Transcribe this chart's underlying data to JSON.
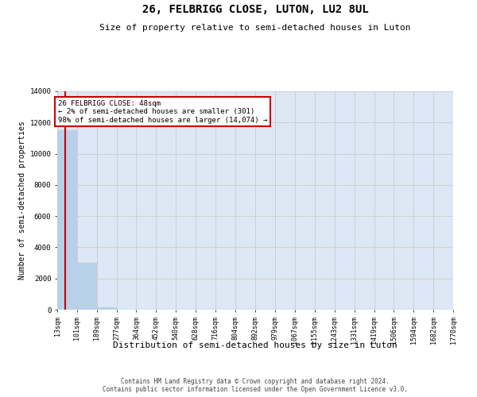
{
  "title": "26, FELBRIGG CLOSE, LUTON, LU2 8UL",
  "subtitle": "Size of property relative to semi-detached houses in Luton",
  "xlabel": "Distribution of semi-detached houses by size in Luton",
  "ylabel": "Number of semi-detached properties",
  "bar_values": [
    11500,
    3000,
    150,
    0,
    0,
    0,
    0,
    0,
    0,
    0,
    0,
    0,
    0,
    0,
    0,
    0,
    0,
    0,
    0,
    0
  ],
  "bin_edges": [
    13,
    101,
    189,
    277,
    364,
    452,
    540,
    628,
    716,
    804,
    892,
    979,
    1067,
    1155,
    1243,
    1331,
    1419,
    1506,
    1594,
    1682,
    1770
  ],
  "tick_labels": [
    "13sqm",
    "101sqm",
    "189sqm",
    "277sqm",
    "364sqm",
    "452sqm",
    "540sqm",
    "628sqm",
    "716sqm",
    "804sqm",
    "892sqm",
    "979sqm",
    "1067sqm",
    "1155sqm",
    "1243sqm",
    "1331sqm",
    "1419sqm",
    "1506sqm",
    "1594sqm",
    "1682sqm",
    "1770sqm"
  ],
  "bar_color": "#b8d0e8",
  "bar_edgecolor": "#b8d0e8",
  "property_value": 48,
  "redline_color": "#cc0000",
  "annotation_text": "26 FELBRIGG CLOSE: 48sqm\n← 2% of semi-detached houses are smaller (301)\n98% of semi-detached houses are larger (14,074) →",
  "annotation_box_facecolor": "#ffffff",
  "annotation_box_edgecolor": "#cc0000",
  "ylim": [
    0,
    14000
  ],
  "yticks": [
    0,
    2000,
    4000,
    6000,
    8000,
    10000,
    12000,
    14000
  ],
  "grid_color": "#cccccc",
  "background_color": "#dce8f5",
  "footer_line1": "Contains HM Land Registry data © Crown copyright and database right 2024.",
  "footer_line2": "Contains public sector information licensed under the Open Government Licence v3.0.",
  "title_fontsize": 10,
  "subtitle_fontsize": 8,
  "tick_fontsize": 6,
  "ylabel_fontsize": 7,
  "xlabel_fontsize": 8,
  "footer_fontsize": 5.5
}
